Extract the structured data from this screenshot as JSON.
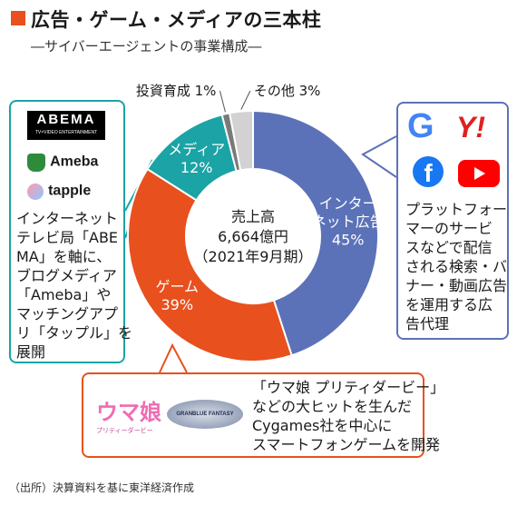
{
  "title": "広告・ゲーム・メディアの三本柱",
  "subtitle": "―サイバーエージェントの事業構成―",
  "colors": {
    "accent": "#e8501e",
    "internet_ads": "#5b72b8",
    "game": "#e8501e",
    "media": "#1ba3a5",
    "investment": "#7a7a7a",
    "other": "#d2d2d2"
  },
  "chart_data": {
    "type": "pie",
    "style": "donut",
    "center_label": [
      "売上高",
      "6,664億円",
      "（2021年9月期）"
    ],
    "slices": [
      {
        "name": "インターネット広告",
        "label_lines": [
          "インター",
          "ネット広告"
        ],
        "value": 45,
        "label": "45%"
      },
      {
        "name": "ゲーム",
        "label_lines": [
          "ゲーム"
        ],
        "value": 39,
        "label": "39%"
      },
      {
        "name": "メディア",
        "label_lines": [
          "メディア"
        ],
        "value": 12,
        "label": "12%"
      },
      {
        "name": "投資育成",
        "label_lines": [
          "投資育成"
        ],
        "value": 1,
        "label": "1%"
      },
      {
        "name": "その他",
        "label_lines": [
          "その他"
        ],
        "value": 3,
        "label": "3%"
      }
    ]
  },
  "callouts": {
    "media": {
      "logos": [
        "ABEMA",
        "TV×VIDEO ENTERTAINMENT",
        "Ameba",
        "tapple"
      ],
      "lines": [
        "インターネット",
        "テレビ局「ABE",
        "MA」を軸に、",
        "ブログメディア",
        "「Ameba」や",
        "マッチングアプ",
        "リ「タップル」を",
        "展開"
      ]
    },
    "ads": {
      "logos": [
        "G",
        "Y!",
        "f",
        "YouTube"
      ],
      "lines": [
        "プラットフォー",
        "マーのサービ",
        "スなどで配信",
        "される検索・バ",
        "ナー・動画広告",
        "を運用する広",
        "告代理"
      ]
    },
    "game": {
      "logos": [
        "ウマ娘",
        "プリティーダービー",
        "GRANBLUE FANTASY"
      ],
      "lines": [
        "「ウマ娘 プリティダービー」",
        "などの大ヒットを生んだ",
        "Cygames社を中心に",
        "スマートフォンゲームを開発"
      ]
    }
  },
  "source": "（出所）決算資料を基に東洋経済作成"
}
